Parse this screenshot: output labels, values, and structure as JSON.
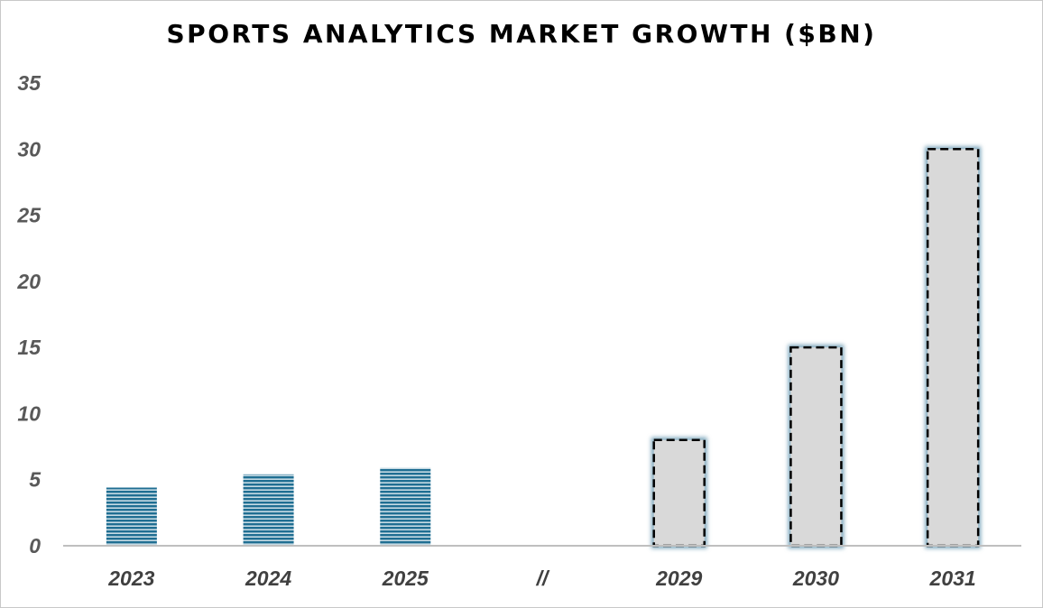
{
  "chart_data": {
    "type": "bar",
    "title": "SPORTS ANALYTICS MARKET GROWTH ($BN)",
    "xlabel": "",
    "ylabel": "",
    "ylim": [
      0,
      35
    ],
    "yticks": [
      0,
      5,
      10,
      15,
      20,
      25,
      30,
      35
    ],
    "grid": false,
    "categories": [
      "2023",
      "2024",
      "2025",
      "//",
      "2029",
      "2030",
      "2031"
    ],
    "values": [
      4.4,
      5.4,
      5.9,
      null,
      8,
      15,
      30
    ],
    "bar_kind": [
      "actual",
      "actual",
      "actual",
      "break",
      "projected",
      "projected",
      "projected"
    ]
  },
  "colors": {
    "actual_fill": "#1f6e92",
    "actual_stripe": "#ffffff",
    "projected_fill": "#d9d9d9",
    "projected_border": "#000000",
    "projected_glow": "#7fa8bd",
    "axis": "#bfbfbf"
  }
}
